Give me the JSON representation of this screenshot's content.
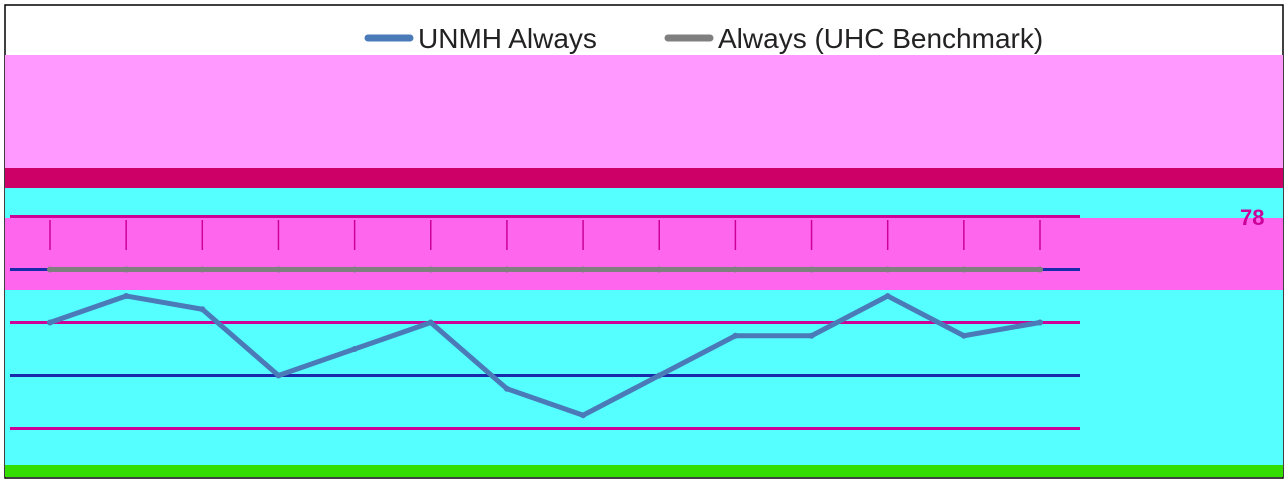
{
  "chart_data": {
    "type": "line",
    "legend_position": "top",
    "grid": true,
    "colors": {
      "frame": "#000000",
      "band_top": "#ff99ff",
      "band_dark": "#cc0066",
      "band_cyan": "#55ffff",
      "band_magenta": "#ff66ee",
      "band_navy": "#1a2aaa",
      "band_bottom": "#33dd00",
      "grid_line": "#cc0099"
    },
    "series": [
      {
        "name": "UNMH Always",
        "color": "#4a7ab8",
        "values": [
          80,
          82,
          81,
          76,
          78,
          80,
          75,
          73,
          76,
          79,
          79,
          82,
          79,
          80
        ]
      },
      {
        "name": "Always (UHC Benchmark)",
        "color": "#7f7f7f",
        "values": [
          84,
          84,
          84,
          84,
          84,
          84,
          84,
          84,
          84,
          84,
          84,
          84,
          84,
          84
        ]
      }
    ],
    "categories": [
      "",
      "",
      "",
      "",
      "",
      "",
      "",
      "",
      "",
      "",
      "",
      "",
      "",
      ""
    ],
    "ylim": [
      70,
      90
    ],
    "labels": [
      {
        "text": "78"
      }
    ],
    "title": "",
    "xlabel": "",
    "ylabel": ""
  }
}
